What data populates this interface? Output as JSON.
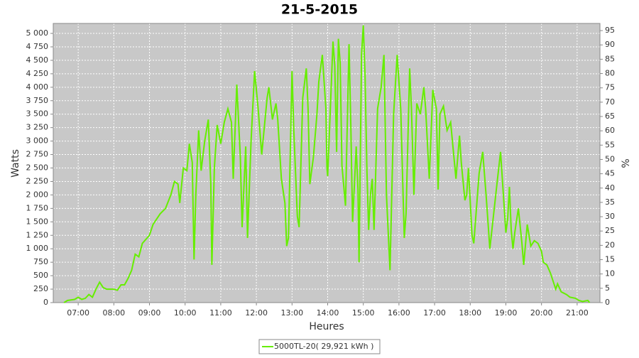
{
  "chart_data": {
    "type": "line",
    "title": "21-5-2015",
    "x_label": "Heures",
    "y_label": "Watts",
    "y2_label": "%",
    "x": [
      6.6,
      6.7,
      6.9,
      7.0,
      7.1,
      7.2,
      7.3,
      7.4,
      7.5,
      7.6,
      7.7,
      7.8,
      8.0,
      8.1,
      8.2,
      8.3,
      8.4,
      8.5,
      8.6,
      8.7,
      8.8,
      9.0,
      9.1,
      9.3,
      9.45,
      9.6,
      9.7,
      9.8,
      9.85,
      9.95,
      10.05,
      10.12,
      10.2,
      10.25,
      10.3,
      10.38,
      10.45,
      10.55,
      10.65,
      10.72,
      10.75,
      10.82,
      10.9,
      11.0,
      11.1,
      11.2,
      11.3,
      11.35,
      11.45,
      11.55,
      11.6,
      11.7,
      11.75,
      11.85,
      11.95,
      12.05,
      12.15,
      12.3,
      12.35,
      12.45,
      12.55,
      12.6,
      12.7,
      12.8,
      12.85,
      12.9,
      13.0,
      13.05,
      13.15,
      13.2,
      13.3,
      13.4,
      13.45,
      13.5,
      13.6,
      13.7,
      13.75,
      13.85,
      13.95,
      13.98,
      14.0,
      14.15,
      14.2,
      14.25,
      14.3,
      14.35,
      14.4,
      14.5,
      14.6,
      14.65,
      14.7,
      14.75,
      14.8,
      14.85,
      14.88,
      14.95,
      15.0,
      15.05,
      15.1,
      15.15,
      15.2,
      15.25,
      15.3,
      15.4,
      15.5,
      15.58,
      15.65,
      15.75,
      15.85,
      15.95,
      16.05,
      16.15,
      16.2,
      16.3,
      16.35,
      16.42,
      16.5,
      16.6,
      16.7,
      16.75,
      16.85,
      16.95,
      17.05,
      17.1,
      17.15,
      17.25,
      17.35,
      17.45,
      17.6,
      17.7,
      17.75,
      17.85,
      17.9,
      17.95,
      18.05,
      18.1,
      18.25,
      18.35,
      18.45,
      18.55,
      18.65,
      18.75,
      18.85,
      18.95,
      19.0,
      19.05,
      19.1,
      19.15,
      19.2,
      19.25,
      19.35,
      19.45,
      19.5,
      19.6,
      19.7,
      19.8,
      19.9,
      20.0,
      20.05,
      20.15,
      20.25,
      20.35,
      20.4,
      20.45,
      20.55,
      20.7,
      20.8,
      20.95,
      21.05,
      21.15,
      21.3,
      21.35
    ],
    "series": [
      {
        "name": "5000TL-20( 29,921 kWh )",
        "color": "#66ee00",
        "values": [
          0,
          40,
          60,
          100,
          60,
          80,
          150,
          100,
          250,
          380,
          280,
          250,
          250,
          230,
          330,
          330,
          450,
          600,
          900,
          850,
          1100,
          1250,
          1450,
          1650,
          1750,
          2000,
          2250,
          2200,
          1850,
          2500,
          2450,
          2950,
          2600,
          800,
          2000,
          3200,
          2450,
          3000,
          3400,
          2200,
          700,
          2500,
          3300,
          2950,
          3350,
          3600,
          3350,
          2300,
          4050,
          2700,
          1400,
          2900,
          1200,
          3000,
          4300,
          3600,
          2750,
          3800,
          4000,
          3400,
          3700,
          3400,
          2300,
          1850,
          1050,
          1200,
          4300,
          3200,
          1600,
          1400,
          3800,
          4350,
          3600,
          2200,
          2700,
          3500,
          4100,
          4600,
          3600,
          2500,
          2350,
          4850,
          4400,
          2800,
          4900,
          4450,
          2550,
          1800,
          4800,
          3300,
          1500,
          2200,
          2900,
          2100,
          750,
          4600,
          5150,
          4200,
          2500,
          1350,
          2000,
          2300,
          1350,
          3600,
          4000,
          4600,
          2000,
          600,
          3500,
          4600,
          3600,
          1200,
          1650,
          4350,
          3600,
          2000,
          3700,
          3500,
          4000,
          3600,
          2300,
          3950,
          3600,
          2100,
          3500,
          3650,
          3200,
          3350,
          2300,
          3100,
          2600,
          1900,
          2000,
          2500,
          1250,
          1100,
          2400,
          2800,
          1950,
          1000,
          1600,
          2200,
          2800,
          1800,
          1300,
          1550,
          2150,
          1350,
          1000,
          1300,
          1750,
          1100,
          700,
          1450,
          1050,
          1150,
          1100,
          950,
          750,
          700,
          550,
          350,
          250,
          350,
          200,
          150,
          100,
          80,
          40,
          20,
          40,
          0
        ]
      }
    ],
    "xlim": [
      6.3,
      21.64
    ],
    "xticks": [
      {
        "value": 7,
        "label": "07:00"
      },
      {
        "value": 8,
        "label": "08:00"
      },
      {
        "value": 9,
        "label": "09:00"
      },
      {
        "value": 10,
        "label": "10:00"
      },
      {
        "value": 11,
        "label": "11:00"
      },
      {
        "value": 12,
        "label": "12:00"
      },
      {
        "value": 13,
        "label": "13:00"
      },
      {
        "value": 14,
        "label": "14:00"
      },
      {
        "value": 15,
        "label": "15:00"
      },
      {
        "value": 16,
        "label": "16:00"
      },
      {
        "value": 17,
        "label": "17:00"
      },
      {
        "value": 18,
        "label": "18:00"
      },
      {
        "value": 19,
        "label": "19:00"
      },
      {
        "value": 20,
        "label": "20:00"
      },
      {
        "value": 21,
        "label": "21:00"
      }
    ],
    "ylim": [
      0,
      5185
    ],
    "yticks": [
      0,
      250,
      500,
      750,
      {
        "value": 1000,
        "label": "1 000"
      },
      {
        "value": 1250,
        "label": "1 250"
      },
      {
        "value": 1500,
        "label": "1 500"
      },
      {
        "value": 1750,
        "label": "1 750"
      },
      {
        "value": 2000,
        "label": "2 000"
      },
      {
        "value": 2250,
        "label": "2 250"
      },
      {
        "value": 2500,
        "label": "2 500"
      },
      {
        "value": 2750,
        "label": "2 750"
      },
      {
        "value": 3000,
        "label": "3 000"
      },
      {
        "value": 3250,
        "label": "3 250"
      },
      {
        "value": 3500,
        "label": "3 500"
      },
      {
        "value": 3750,
        "label": "3 750"
      },
      {
        "value": 4000,
        "label": "4 000"
      },
      {
        "value": 4250,
        "label": "4 250"
      },
      {
        "value": 4500,
        "label": "4 500"
      },
      {
        "value": 4750,
        "label": "4 750"
      },
      {
        "value": 5000,
        "label": "5 000"
      }
    ],
    "y2lim": [
      0,
      97.5
    ],
    "y2ticks": [
      0,
      5,
      10,
      15,
      20,
      25,
      30,
      35,
      40,
      45,
      50,
      55,
      60,
      65,
      70,
      75,
      80,
      85,
      90,
      95
    ],
    "grid": true,
    "legend": "bottom"
  }
}
